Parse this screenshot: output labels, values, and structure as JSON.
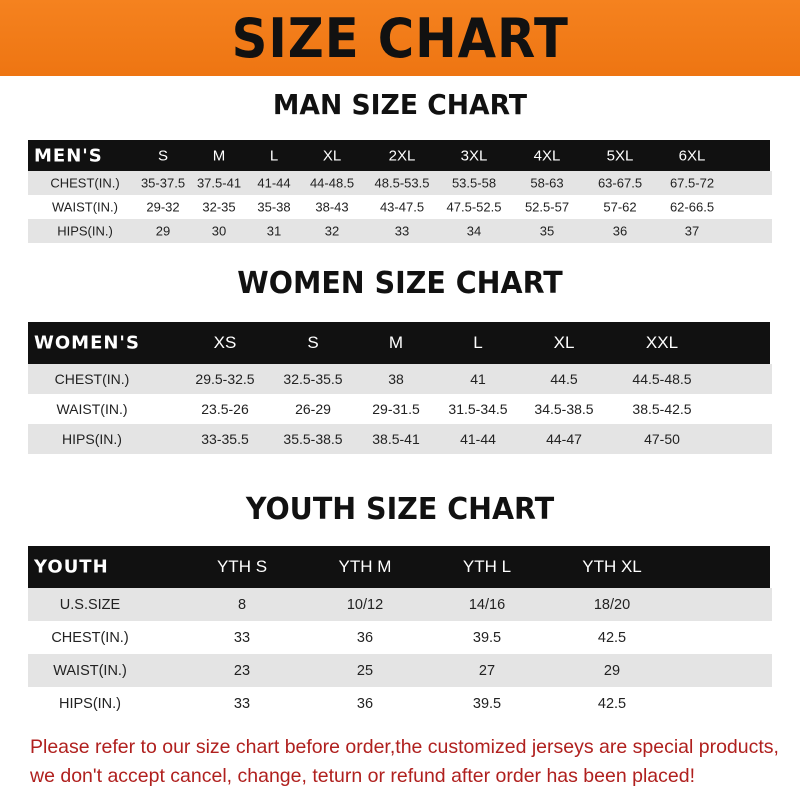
{
  "banner_title": "SIZE CHART",
  "men": {
    "title": "MAN SIZE CHART",
    "header": [
      "MEN'S",
      "S",
      "M",
      "L",
      "XL",
      "2XL",
      "3XL",
      "4XL",
      "5XL",
      "6XL"
    ],
    "rows": [
      [
        "CHEST(IN.)",
        "35-37.5",
        "37.5-41",
        "41-44",
        "44-48.5",
        "48.5-53.5",
        "53.5-58",
        "58-63",
        "63-67.5",
        "67.5-72"
      ],
      [
        "WAIST(IN.)",
        "29-32",
        "32-35",
        "35-38",
        "38-43",
        "43-47.5",
        "47.5-52.5",
        "52.5-57",
        "57-62",
        "62-66.5"
      ],
      [
        "HIPS(IN.)",
        "29",
        "30",
        "31",
        "32",
        "33",
        "34",
        "35",
        "36",
        "37"
      ]
    ]
  },
  "women": {
    "title": "WOMEN SIZE CHART",
    "header": [
      "WOMEN'S",
      "XS",
      "S",
      "M",
      "L",
      "XL",
      "XXL"
    ],
    "rows": [
      [
        "CHEST(IN.)",
        "29.5-32.5",
        "32.5-35.5",
        "38",
        "41",
        "44.5",
        "44.5-48.5"
      ],
      [
        "WAIST(IN.)",
        "23.5-26",
        "26-29",
        "29-31.5",
        "31.5-34.5",
        "34.5-38.5",
        "38.5-42.5"
      ],
      [
        "HIPS(IN.)",
        "33-35.5",
        "35.5-38.5",
        "38.5-41",
        "41-44",
        "44-47",
        "47-50"
      ]
    ]
  },
  "youth": {
    "title": "YOUTH SIZE CHART",
    "header": [
      "YOUTH",
      "YTH S",
      "YTH M",
      "YTH L",
      "YTH XL"
    ],
    "rows": [
      [
        "U.S.SIZE",
        "8",
        "10/12",
        "14/16",
        "18/20"
      ],
      [
        "CHEST(IN.)",
        "33",
        "36",
        "39.5",
        "42.5"
      ],
      [
        "WAIST(IN.)",
        "23",
        "25",
        "27",
        "29"
      ],
      [
        "HIPS(IN.)",
        "33",
        "36",
        "39.5",
        "42.5"
      ]
    ]
  },
  "note": [
    "Please refer to our size chart before order,the customized jerseys are special products,",
    "we don't accept cancel, change, teturn or refund after order has been placed!"
  ],
  "colors": {
    "banner": "#f5821f",
    "header": "#111111",
    "note": "#b0201e"
  }
}
